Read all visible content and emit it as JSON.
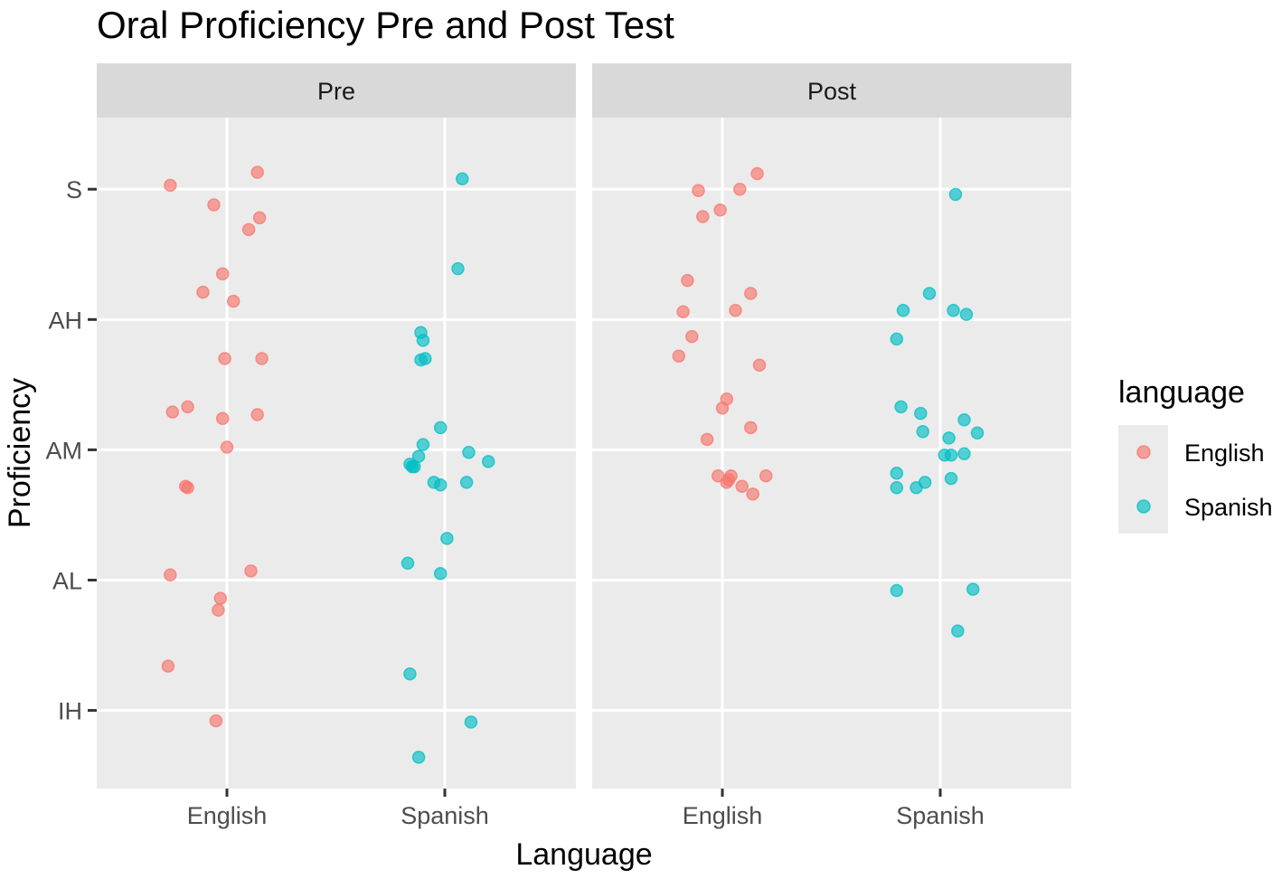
{
  "chart_data": {
    "type": "scatter",
    "title": "Oral Proficiency Pre and Post Test",
    "xlabel": "Language",
    "ylabel": "Proficiency",
    "facets": [
      "Pre",
      "Post"
    ],
    "categories": [
      "English",
      "Spanish"
    ],
    "y_categories": [
      "IH",
      "AL",
      "AM",
      "AH",
      "S"
    ],
    "ylim": [
      0.4,
      5.55
    ],
    "grid": true,
    "legend": {
      "title": "language",
      "position": "right",
      "entries": [
        {
          "name": "English",
          "color": "#F8766D"
        },
        {
          "name": "Spanish",
          "color": "#00BFC4"
        }
      ]
    },
    "series": [
      {
        "facet": "Pre",
        "name": "English",
        "color": "#F8766D",
        "points": [
          [
            0.74,
            5.03
          ],
          [
            1.14,
            5.13
          ],
          [
            0.94,
            4.88
          ],
          [
            1.15,
            4.78
          ],
          [
            1.1,
            4.69
          ],
          [
            0.98,
            4.35
          ],
          [
            0.89,
            4.21
          ],
          [
            1.03,
            4.14
          ],
          [
            0.99,
            3.7
          ],
          [
            1.16,
            3.7
          ],
          [
            0.82,
            3.33
          ],
          [
            0.75,
            3.29
          ],
          [
            0.98,
            3.24
          ],
          [
            1.14,
            3.27
          ],
          [
            1.0,
            3.02
          ],
          [
            0.81,
            2.72
          ],
          [
            0.82,
            2.71
          ],
          [
            0.74,
            2.04
          ],
          [
            1.11,
            2.07
          ],
          [
            0.97,
            1.86
          ],
          [
            0.96,
            1.77
          ],
          [
            0.73,
            1.34
          ],
          [
            0.95,
            0.92
          ]
        ]
      },
      {
        "facet": "Pre",
        "name": "Spanish",
        "color": "#00BFC4",
        "points": [
          [
            2.08,
            5.08
          ],
          [
            2.06,
            4.39
          ],
          [
            1.89,
            3.9
          ],
          [
            1.9,
            3.84
          ],
          [
            1.89,
            3.69
          ],
          [
            1.91,
            3.7
          ],
          [
            1.98,
            3.17
          ],
          [
            1.9,
            3.04
          ],
          [
            1.88,
            2.95
          ],
          [
            1.84,
            2.89
          ],
          [
            1.86,
            2.87
          ],
          [
            1.85,
            2.87
          ],
          [
            2.11,
            2.98
          ],
          [
            2.2,
            2.91
          ],
          [
            1.95,
            2.75
          ],
          [
            1.98,
            2.73
          ],
          [
            2.1,
            2.75
          ],
          [
            2.01,
            2.32
          ],
          [
            1.83,
            2.13
          ],
          [
            1.98,
            2.05
          ],
          [
            1.84,
            1.28
          ],
          [
            2.12,
            0.91
          ],
          [
            1.88,
            0.64
          ]
        ]
      },
      {
        "facet": "Post",
        "name": "English",
        "color": "#F8766D",
        "points": [
          [
            1.16,
            5.12
          ],
          [
            0.89,
            4.99
          ],
          [
            1.08,
            5.0
          ],
          [
            0.99,
            4.84
          ],
          [
            0.91,
            4.79
          ],
          [
            0.84,
            4.3
          ],
          [
            1.13,
            4.2
          ],
          [
            0.82,
            4.06
          ],
          [
            1.06,
            4.07
          ],
          [
            0.86,
            3.87
          ],
          [
            0.8,
            3.72
          ],
          [
            1.17,
            3.65
          ],
          [
            1.02,
            3.39
          ],
          [
            1.0,
            3.32
          ],
          [
            1.13,
            3.17
          ],
          [
            0.93,
            3.08
          ],
          [
            0.98,
            2.8
          ],
          [
            1.04,
            2.8
          ],
          [
            1.03,
            2.77
          ],
          [
            1.02,
            2.75
          ],
          [
            1.2,
            2.8
          ],
          [
            1.09,
            2.72
          ],
          [
            1.14,
            2.66
          ]
        ]
      },
      {
        "facet": "Post",
        "name": "Spanish",
        "color": "#00BFC4",
        "points": [
          [
            2.07,
            4.96
          ],
          [
            1.95,
            4.2
          ],
          [
            1.83,
            4.07
          ],
          [
            2.06,
            4.07
          ],
          [
            2.12,
            4.04
          ],
          [
            1.8,
            3.85
          ],
          [
            1.82,
            3.33
          ],
          [
            1.91,
            3.28
          ],
          [
            2.11,
            3.23
          ],
          [
            1.92,
            3.14
          ],
          [
            2.17,
            3.13
          ],
          [
            2.04,
            3.09
          ],
          [
            2.02,
            2.96
          ],
          [
            2.05,
            2.96
          ],
          [
            2.11,
            2.97
          ],
          [
            1.8,
            2.82
          ],
          [
            2.05,
            2.78
          ],
          [
            1.93,
            2.75
          ],
          [
            1.8,
            2.71
          ],
          [
            1.89,
            2.71
          ],
          [
            1.8,
            1.92
          ],
          [
            2.15,
            1.93
          ],
          [
            2.08,
            1.61
          ]
        ]
      }
    ]
  }
}
